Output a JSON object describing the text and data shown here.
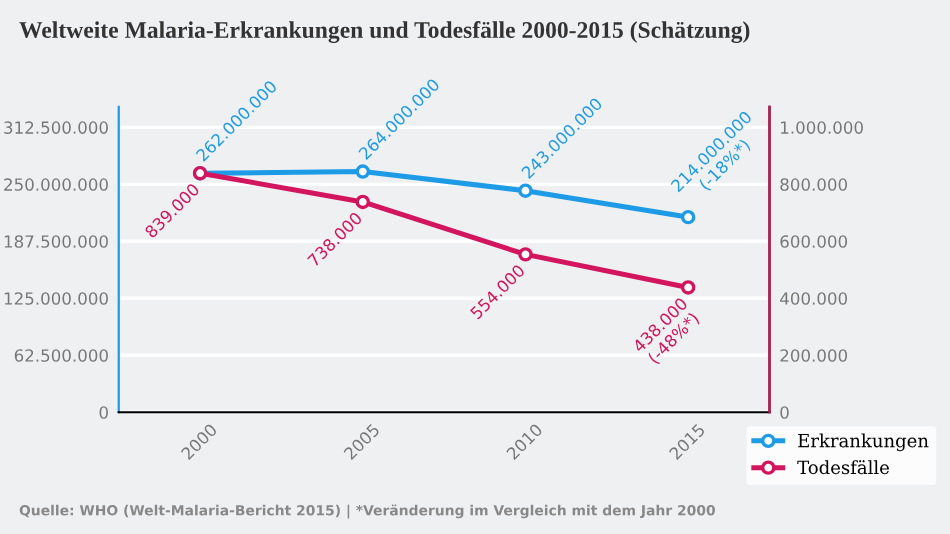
{
  "chart_data": {
    "type": "line",
    "title": "Weltweite Malaria-Erkrankungen und Todesfälle 2000-2015 (Schätzung)",
    "categories": [
      "2000",
      "2005",
      "2010",
      "2015"
    ],
    "series": [
      {
        "name": "Erkrankungen",
        "color": "#1e9be6",
        "values": [
          262000000,
          264000000,
          243000000,
          214000000
        ],
        "value_labels": [
          "262.000.000",
          "264.000.000",
          "243.000.000",
          "214.000.000\n(-18%*)"
        ]
      },
      {
        "name": "Todesfälle",
        "color": "#d3145e",
        "axis": "y2",
        "values": [
          839000,
          738000,
          554000,
          438000
        ],
        "value_labels": [
          "839.000",
          "738.000",
          "554.000",
          "438.000\n(-48%*)"
        ]
      }
    ],
    "ylim": [
      0,
      335000000
    ],
    "yticks": [
      0,
      {
        "value": 62500000,
        "label": "62.500.000"
      },
      {
        "value": 125000000,
        "label": "125.000.000"
      },
      {
        "value": 187500000,
        "label": "187.500.000"
      },
      {
        "value": 250000000,
        "label": "250.000.000"
      },
      {
        "value": 312500000,
        "label": "312.500.000"
      }
    ],
    "y2lim": [
      0,
      1072000
    ],
    "y2ticks": [
      0,
      {
        "value": 200000,
        "label": "200.000"
      },
      {
        "value": 400000,
        "label": "400.000"
      },
      {
        "value": 600000,
        "label": "600.000"
      },
      {
        "value": 800000,
        "label": "800.000"
      },
      {
        "value": 1000000,
        "label": "1.000.000"
      }
    ],
    "grid": "y",
    "legend": "bottom right",
    "marker": "circle",
    "line_style": "solid",
    "annotations": [
      "Quelle: WHO (Welt-Malaria-Bericht 2015) | *Veränderung im Vergleich mit dem Jahr 2000"
    ]
  }
}
